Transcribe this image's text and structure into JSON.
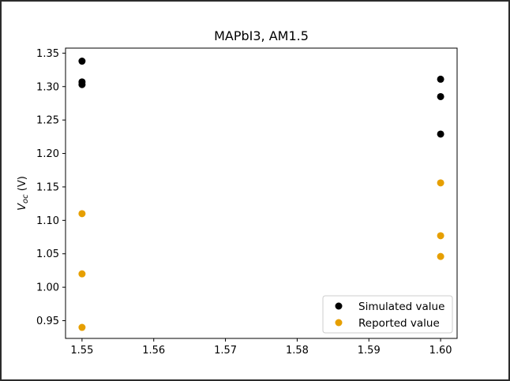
{
  "chart_data": {
    "type": "scatter",
    "title": "MAPbI3, AM1.5",
    "xlabel": "",
    "ylabel_main": "V",
    "ylabel_sub": "oc",
    "ylabel_unit": "(V)",
    "xlim": [
      1.5477,
      1.6023
    ],
    "ylim": [
      0.9235,
      1.3575
    ],
    "xticks": [
      1.55,
      1.56,
      1.57,
      1.58,
      1.59,
      1.6
    ],
    "xtick_labels": [
      "1.55",
      "1.56",
      "1.57",
      "1.58",
      "1.59",
      "1.60"
    ],
    "yticks": [
      0.95,
      1.0,
      1.05,
      1.1,
      1.15,
      1.2,
      1.25,
      1.3,
      1.35
    ],
    "ytick_labels": [
      "0.95",
      "1.00",
      "1.05",
      "1.10",
      "1.15",
      "1.20",
      "1.25",
      "1.30",
      "1.35"
    ],
    "grid": false,
    "legend_position": "bottom-right",
    "series": [
      {
        "name": "Simulated value",
        "color": "#000000",
        "points": [
          {
            "x": 1.55,
            "y": 1.338
          },
          {
            "x": 1.55,
            "y": 1.307
          },
          {
            "x": 1.55,
            "y": 1.303
          },
          {
            "x": 1.6,
            "y": 1.311
          },
          {
            "x": 1.6,
            "y": 1.285
          },
          {
            "x": 1.6,
            "y": 1.229
          }
        ]
      },
      {
        "name": "Reported value",
        "color": "#e69f00",
        "points": [
          {
            "x": 1.55,
            "y": 1.11
          },
          {
            "x": 1.55,
            "y": 1.02
          },
          {
            "x": 1.55,
            "y": 0.94
          },
          {
            "x": 1.6,
            "y": 1.156
          },
          {
            "x": 1.6,
            "y": 1.077
          },
          {
            "x": 1.6,
            "y": 1.046
          }
        ]
      }
    ]
  }
}
